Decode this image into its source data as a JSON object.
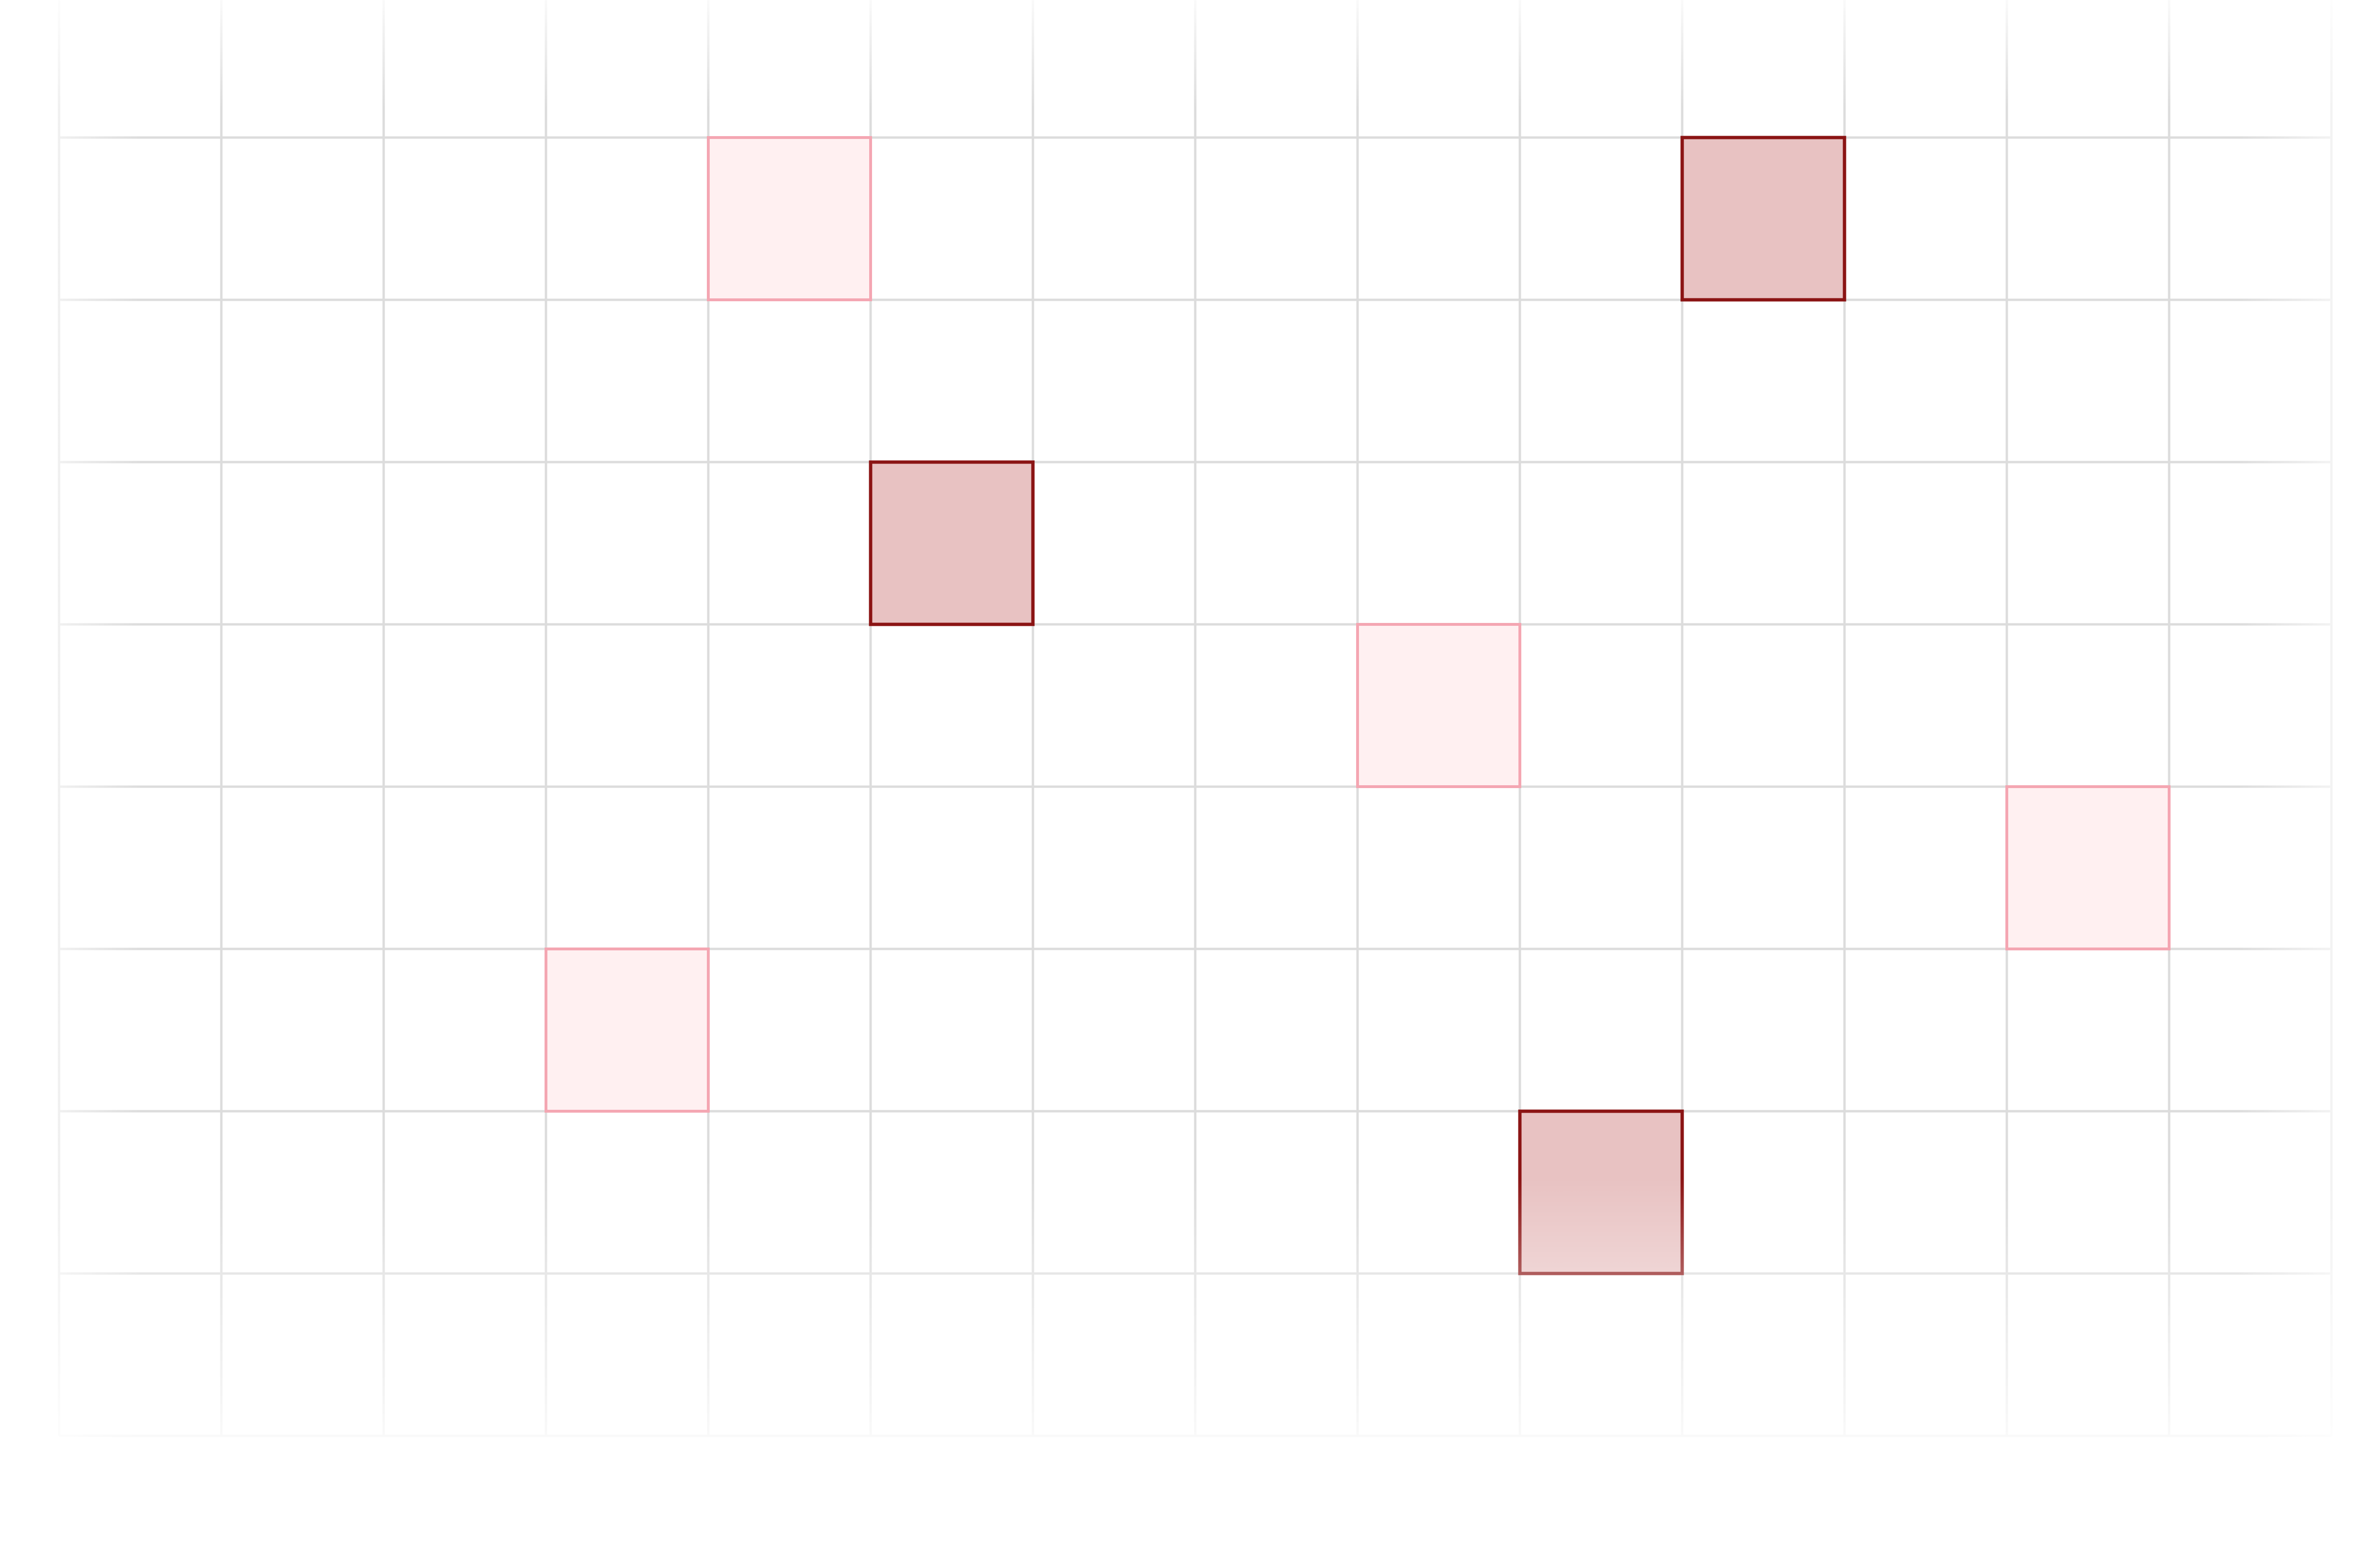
{
  "grid": {
    "columns": 14,
    "rows": 9,
    "line_color": "#dcdcdc",
    "background_color": "#ffffff"
  },
  "highlights": {
    "strong": {
      "fill": "#e8c2c2",
      "stroke": "#8b1414",
      "cells": [
        {
          "col": 10,
          "row": 1
        },
        {
          "col": 5,
          "row": 3
        },
        {
          "col": 9,
          "row": 7
        }
      ]
    },
    "light": {
      "fill": "#fff0f1",
      "stroke": "#f4a6b2",
      "cells": [
        {
          "col": 4,
          "row": 1
        },
        {
          "col": 8,
          "row": 4
        },
        {
          "col": 12,
          "row": 5
        },
        {
          "col": 3,
          "row": 6
        }
      ]
    }
  }
}
